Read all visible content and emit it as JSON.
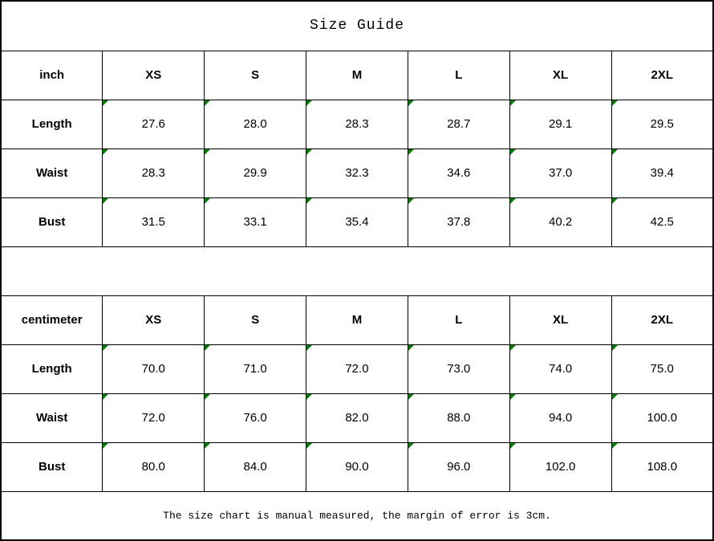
{
  "title": "Size Guide",
  "footer_note": "The size chart is manual measured, the margin of error is 3cm.",
  "colors": {
    "border": "#000000",
    "text": "#000000",
    "background": "#ffffff",
    "comment_marker_green": "#008000"
  },
  "size_columns": [
    "XS",
    "S",
    "M",
    "L",
    "XL",
    "2XL"
  ],
  "tables": {
    "inch": {
      "unit_label": "inch",
      "rows": {
        "0": {
          "label": "Length",
          "values": [
            "27.6",
            "28.0",
            "28.3",
            "28.7",
            "29.1",
            "29.5"
          ]
        },
        "1": {
          "label": "Waist",
          "values": [
            "28.3",
            "29.9",
            "32.3",
            "34.6",
            "37.0",
            "39.4"
          ]
        },
        "2": {
          "label": "Bust",
          "values": [
            "31.5",
            "33.1",
            "35.4",
            "37.8",
            "40.2",
            "42.5"
          ]
        }
      }
    },
    "cm": {
      "unit_label": "centimeter",
      "rows": {
        "0": {
          "label": "Length",
          "values": [
            "70.0",
            "71.0",
            "72.0",
            "73.0",
            "74.0",
            "75.0"
          ]
        },
        "1": {
          "label": "Waist",
          "values": [
            "72.0",
            "76.0",
            "82.0",
            "88.0",
            "94.0",
            "100.0"
          ]
        },
        "2": {
          "label": "Bust",
          "values": [
            "80.0",
            "84.0",
            "90.0",
            "96.0",
            "102.0",
            "108.0"
          ]
        }
      }
    }
  },
  "chart_data": [
    {
      "type": "table",
      "title": "Size Guide",
      "unit": "inch",
      "columns": [
        "XS",
        "S",
        "M",
        "L",
        "XL",
        "2XL"
      ],
      "rows": [
        {
          "label": "Length",
          "values": [
            27.6,
            28.0,
            28.3,
            28.7,
            29.1,
            29.5
          ]
        },
        {
          "label": "Waist",
          "values": [
            28.3,
            29.9,
            32.3,
            34.6,
            37.0,
            39.4
          ]
        },
        {
          "label": "Bust",
          "values": [
            31.5,
            33.1,
            35.4,
            37.8,
            40.2,
            42.5
          ]
        }
      ]
    },
    {
      "type": "table",
      "title": "Size Guide",
      "unit": "centimeter",
      "columns": [
        "XS",
        "S",
        "M",
        "L",
        "XL",
        "2XL"
      ],
      "rows": [
        {
          "label": "Length",
          "values": [
            70.0,
            71.0,
            72.0,
            73.0,
            74.0,
            75.0
          ]
        },
        {
          "label": "Waist",
          "values": [
            72.0,
            76.0,
            82.0,
            88.0,
            94.0,
            100.0
          ]
        },
        {
          "label": "Bust",
          "values": [
            80.0,
            84.0,
            90.0,
            96.0,
            102.0,
            108.0
          ]
        }
      ],
      "note": "The size chart is manual measured, the margin of error is 3cm."
    }
  ]
}
